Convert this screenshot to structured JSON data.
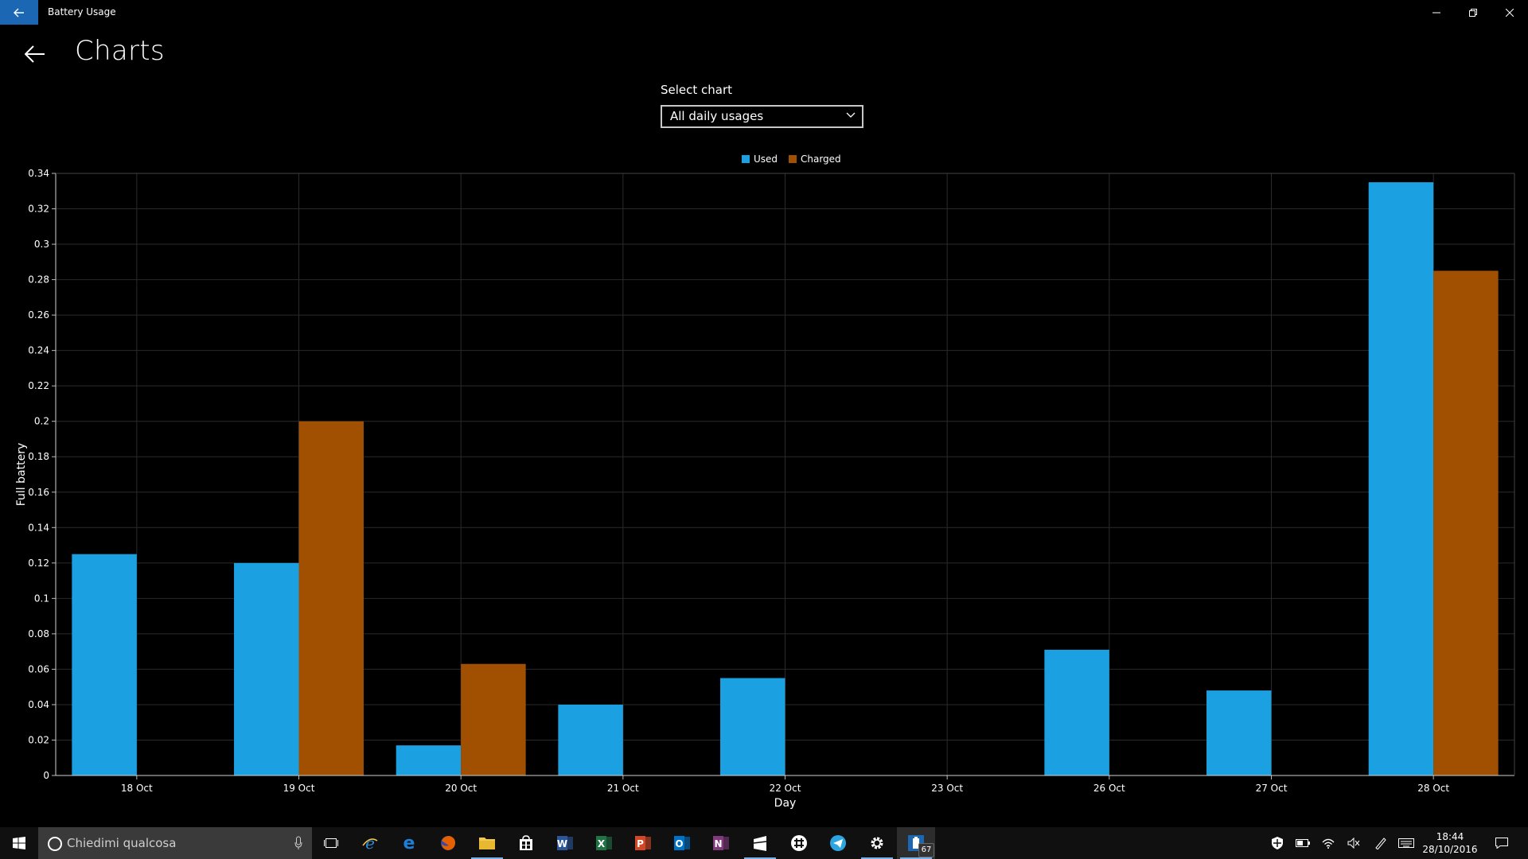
{
  "window": {
    "title": "Battery Usage"
  },
  "page": {
    "title": "Charts"
  },
  "selector": {
    "label": "Select chart",
    "value": "All daily usages"
  },
  "chart_data": {
    "type": "bar",
    "title": "",
    "xlabel": "Day",
    "ylabel": "Full battery",
    "categories": [
      "18 Oct",
      "19 Oct",
      "20 Oct",
      "21 Oct",
      "22 Oct",
      "23 Oct",
      "26 Oct",
      "27 Oct",
      "28 Oct"
    ],
    "series": [
      {
        "name": "Used",
        "color": "#1ba1e2",
        "values": [
          0.125,
          0.12,
          0.017,
          0.04,
          0.055,
          0,
          0.071,
          0.048,
          0.335
        ]
      },
      {
        "name": "Charged",
        "color": "#a05000",
        "values": [
          0,
          0.2,
          0.063,
          0,
          0,
          0,
          0,
          0,
          0.285
        ]
      }
    ],
    "ylim": [
      0,
      0.34
    ],
    "yticks": [
      "0",
      "0.02",
      "0.04",
      "0.06",
      "0.08",
      "0.1",
      "0.12",
      "0.14",
      "0.16",
      "0.18",
      "0.2",
      "0.22",
      "0.24",
      "0.26",
      "0.28",
      "0.3",
      "0.32",
      "0.34"
    ],
    "grid": true,
    "legend_position": "top-center"
  },
  "taskbar": {
    "search_placeholder": "Chiedimi qualcosa",
    "apps": [
      {
        "name": "task-view",
        "icon": "task-view-icon",
        "color": "#ffffff"
      },
      {
        "name": "internet-explorer",
        "icon": "internet-explorer-icon",
        "color": "#2a8ad4"
      },
      {
        "name": "edge",
        "icon": "edge-icon",
        "color": "#1e7fd8"
      },
      {
        "name": "firefox",
        "icon": "firefox-icon",
        "color": "#e66000"
      },
      {
        "name": "file-explorer",
        "icon": "folder-icon",
        "color": "#f2c94c"
      },
      {
        "name": "store",
        "icon": "store-icon",
        "color": "#ffffff"
      },
      {
        "name": "word",
        "icon": "word-icon",
        "color": "#2b579a"
      },
      {
        "name": "excel",
        "icon": "excel-icon",
        "color": "#217346"
      },
      {
        "name": "powerpoint",
        "icon": "powerpoint-icon",
        "color": "#d24726"
      },
      {
        "name": "outlook",
        "icon": "outlook-icon",
        "color": "#0072c6"
      },
      {
        "name": "onenote",
        "icon": "onenote-icon",
        "color": "#80397b"
      },
      {
        "name": "app-store-bag",
        "icon": "bag-icon",
        "color": "#ffffff"
      },
      {
        "name": "slack",
        "icon": "slack-icon",
        "color": "#ffffff"
      },
      {
        "name": "telegram",
        "icon": "telegram-icon",
        "color": "#2ca5e0"
      },
      {
        "name": "settings",
        "icon": "gear-icon",
        "color": "#ffffff"
      },
      {
        "name": "battery-usage",
        "icon": "battery-app-icon",
        "color": "#1c67b4",
        "badge": "67"
      }
    ],
    "clock": {
      "time": "18:44",
      "date": "28/10/2016"
    }
  }
}
